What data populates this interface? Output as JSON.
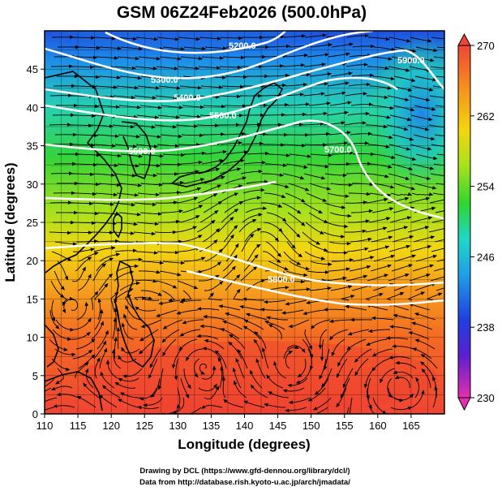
{
  "title": "GSM 06Z24Feb2026 (500.0hPa)",
  "x_axis": {
    "label": "Longitude (degrees)",
    "range": [
      110,
      170
    ],
    "ticks": [
      "110",
      "115",
      "120",
      "125",
      "130",
      "135",
      "140",
      "145",
      "150",
      "155",
      "160",
      "165"
    ]
  },
  "y_axis": {
    "label": "Latitude  (degrees)",
    "range": [
      0,
      50
    ],
    "ticks": [
      "0",
      "5",
      "10",
      "15",
      "20",
      "25",
      "30",
      "35",
      "40",
      "45"
    ]
  },
  "colorbar": {
    "ticks": [
      "270",
      "262",
      "254",
      "246",
      "238",
      "230"
    ],
    "min": 230,
    "max": 270
  },
  "contours": [
    {
      "label": "5200.0"
    },
    {
      "label": "5300.0"
    },
    {
      "label": "5400.0"
    },
    {
      "label": "5500.0"
    },
    {
      "label": "5600.0"
    },
    {
      "label": "5700.0"
    },
    {
      "label": "5800.0"
    },
    {
      "label": "5900.0"
    }
  ],
  "credits": {
    "line1": "Drawing by DCL (https://www.gfd-dennou.org/library/dcl/)",
    "line2": "Data from http://database.rish.kyoto-u.ac.jp/arch/jmadata/"
  },
  "colors": {
    "frame": "#000000",
    "contour": "#ffffff"
  }
}
